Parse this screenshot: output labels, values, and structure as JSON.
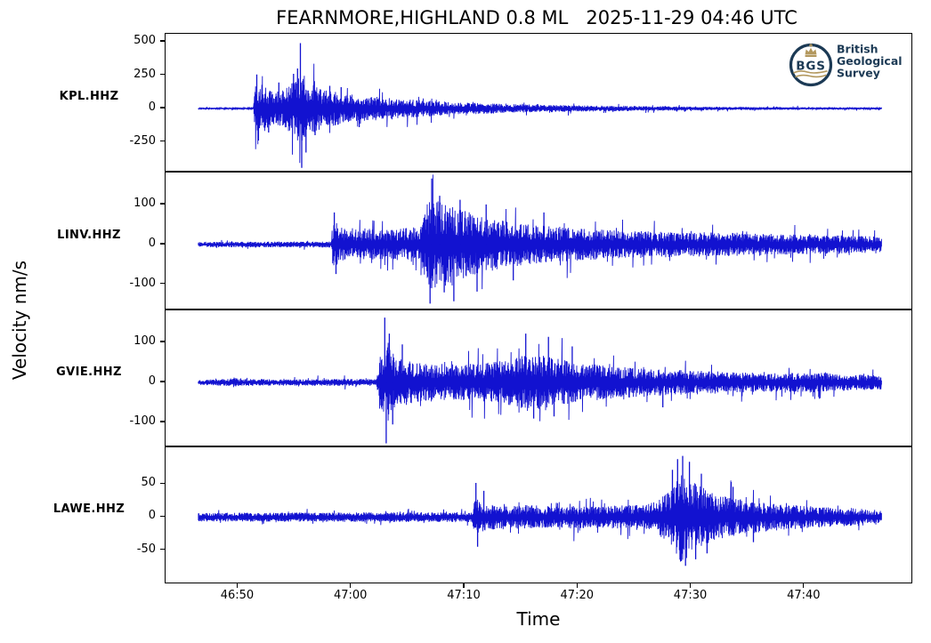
{
  "title": "FEARNMORE,HIGHLAND 0.8 ML   2025-11-29 04:46 UTC",
  "xlabel": "Time",
  "ylabel": "Velocity nm/s",
  "colors": {
    "trace": "#1212d0",
    "axis": "#000000",
    "logo_navy": "#1c3a55",
    "logo_gold": "#b3985e"
  },
  "logo": {
    "abbr": "BGS",
    "name_lines": [
      "British",
      "Geological",
      "Survey"
    ]
  },
  "x_axis": {
    "label": "Time",
    "tlim": [
      -2.9,
      63.1
    ],
    "data_span": [
      0,
      60.3
    ],
    "ticks": [
      {
        "t": 3.5,
        "label": "46:50"
      },
      {
        "t": 13.5,
        "label": "47:00"
      },
      {
        "t": 23.5,
        "label": "47:10"
      },
      {
        "t": 33.5,
        "label": "47:20"
      },
      {
        "t": 43.5,
        "label": "47:30"
      },
      {
        "t": 53.5,
        "label": "47:40"
      }
    ]
  },
  "chart_data": [
    {
      "type": "line",
      "station": "KPL.HHZ",
      "seed": 7,
      "ylim": [
        -480,
        560
      ],
      "yticks": [
        500,
        250,
        0,
        -250
      ],
      "envelope": [
        [
          0,
          5
        ],
        [
          4.85,
          5
        ],
        [
          5.0,
          150
        ],
        [
          5.6,
          170
        ],
        [
          6.6,
          110
        ],
        [
          7.6,
          130
        ],
        [
          8.5,
          190
        ],
        [
          9.0,
          250
        ],
        [
          9.6,
          185
        ],
        [
          11,
          135
        ],
        [
          13,
          100
        ],
        [
          15,
          85
        ],
        [
          17,
          70
        ],
        [
          20,
          55
        ],
        [
          23,
          42
        ],
        [
          26,
          34
        ],
        [
          30,
          26
        ],
        [
          35,
          20
        ],
        [
          40,
          16
        ],
        [
          45,
          12
        ],
        [
          50,
          10
        ],
        [
          55,
          8
        ],
        [
          60.3,
          7
        ]
      ],
      "spikes": [
        [
          5.15,
          255
        ],
        [
          5.3,
          -240
        ],
        [
          6.2,
          -180
        ],
        [
          7.1,
          195
        ],
        [
          8.4,
          260
        ],
        [
          8.75,
          300
        ],
        [
          9.0,
          490
        ],
        [
          9.12,
          -445
        ],
        [
          9.5,
          -330
        ],
        [
          10.3,
          -200
        ],
        [
          11.6,
          170
        ],
        [
          12.6,
          160
        ],
        [
          14.2,
          -140
        ]
      ]
    },
    {
      "type": "line",
      "station": "LINV.HHZ",
      "seed": 13,
      "ylim": [
        -165,
        180
      ],
      "yticks": [
        100,
        0,
        -100
      ],
      "envelope": [
        [
          0,
          6
        ],
        [
          11.7,
          7
        ],
        [
          11.9,
          58
        ],
        [
          12.4,
          42
        ],
        [
          13.2,
          32
        ],
        [
          14.5,
          37
        ],
        [
          16,
          33
        ],
        [
          18,
          37
        ],
        [
          19.6,
          42
        ],
        [
          20.3,
          100
        ],
        [
          21,
          105
        ],
        [
          22,
          92
        ],
        [
          23,
          85
        ],
        [
          24,
          72
        ],
        [
          25.5,
          62
        ],
        [
          27,
          54
        ],
        [
          29,
          46
        ],
        [
          31,
          42
        ],
        [
          34,
          36
        ],
        [
          37,
          32
        ],
        [
          40,
          30
        ],
        [
          44,
          28
        ],
        [
          48,
          26
        ],
        [
          52,
          23
        ],
        [
          56,
          21
        ],
        [
          60.3,
          18
        ]
      ],
      "spikes": [
        [
          12.0,
          80
        ],
        [
          12.15,
          -74
        ],
        [
          20.45,
          -148
        ],
        [
          20.6,
          165
        ],
        [
          21.3,
          122
        ],
        [
          21.7,
          -120
        ],
        [
          22.55,
          -142
        ],
        [
          23.1,
          112
        ],
        [
          24.6,
          -118
        ],
        [
          25.4,
          100
        ],
        [
          27.8,
          -90
        ],
        [
          30.5,
          80
        ]
      ]
    },
    {
      "type": "line",
      "station": "GVIE.HHZ",
      "seed": 29,
      "ylim": [
        -162,
        180
      ],
      "yticks": [
        100,
        0,
        -100
      ],
      "envelope": [
        [
          0,
          6
        ],
        [
          2.7,
          8
        ],
        [
          3.1,
          14
        ],
        [
          3.5,
          8
        ],
        [
          8,
          7
        ],
        [
          12,
          8
        ],
        [
          15.7,
          8
        ],
        [
          16.05,
          70
        ],
        [
          16.7,
          80
        ],
        [
          17.4,
          62
        ],
        [
          18.6,
          48
        ],
        [
          20,
          43
        ],
        [
          22,
          38
        ],
        [
          24,
          41
        ],
        [
          26,
          46
        ],
        [
          28,
          56
        ],
        [
          29,
          66
        ],
        [
          30,
          60
        ],
        [
          31,
          63
        ],
        [
          32,
          52
        ],
        [
          33.5,
          46
        ],
        [
          35,
          41
        ],
        [
          37,
          36
        ],
        [
          39,
          33
        ],
        [
          41,
          30
        ],
        [
          43,
          28
        ],
        [
          45,
          26
        ],
        [
          48,
          23
        ],
        [
          51,
          21
        ],
        [
          54,
          23
        ],
        [
          57,
          19
        ],
        [
          60.3,
          16
        ]
      ],
      "spikes": [
        [
          16.45,
          162
        ],
        [
          16.58,
          -152
        ],
        [
          16.85,
          122
        ],
        [
          17.15,
          -105
        ],
        [
          18.0,
          95
        ],
        [
          28.9,
          122
        ],
        [
          29.6,
          -90
        ],
        [
          30.9,
          114
        ],
        [
          31.4,
          -85
        ],
        [
          33.0,
          90
        ],
        [
          41.0,
          -62
        ]
      ]
    },
    {
      "type": "line",
      "station": "LAWE.HHZ",
      "seed": 41,
      "ylim": [
        -102,
        106
      ],
      "yticks": [
        50,
        0,
        -50
      ],
      "envelope": [
        [
          0,
          6
        ],
        [
          24.1,
          7
        ],
        [
          24.45,
          26
        ],
        [
          25,
          20
        ],
        [
          26,
          17
        ],
        [
          27.5,
          15
        ],
        [
          29,
          17
        ],
        [
          31,
          15
        ],
        [
          33,
          16
        ],
        [
          35,
          15
        ],
        [
          37,
          16
        ],
        [
          39,
          17
        ],
        [
          40.3,
          21
        ],
        [
          41,
          30
        ],
        [
          41.9,
          44
        ],
        [
          42.5,
          62
        ],
        [
          43.1,
          58
        ],
        [
          43.7,
          50
        ],
        [
          44.4,
          42
        ],
        [
          45.2,
          36
        ],
        [
          46,
          31
        ],
        [
          47,
          27
        ],
        [
          48.5,
          23
        ],
        [
          50,
          20
        ],
        [
          52,
          17
        ],
        [
          54,
          15
        ],
        [
          56,
          13
        ],
        [
          58,
          12
        ],
        [
          60.3,
          10
        ]
      ],
      "spikes": [
        [
          24.5,
          52
        ],
        [
          24.65,
          -45
        ],
        [
          25.2,
          40
        ],
        [
          41.85,
          72
        ],
        [
          42.3,
          88
        ],
        [
          42.75,
          93
        ],
        [
          43.0,
          -74
        ],
        [
          43.35,
          84
        ],
        [
          43.9,
          -64
        ],
        [
          44.4,
          66
        ],
        [
          44.9,
          -55
        ],
        [
          47.2,
          46
        ],
        [
          49.0,
          -38
        ]
      ]
    }
  ]
}
